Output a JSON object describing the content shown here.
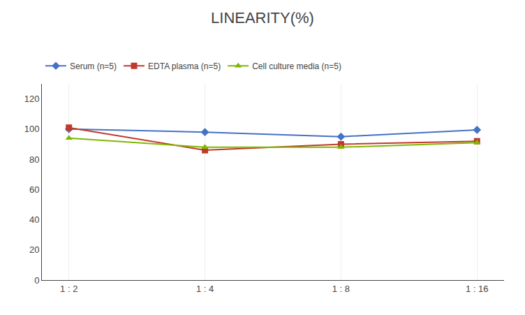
{
  "chart_data": {
    "type": "line",
    "title": "LINEARITY(%)",
    "categories": [
      "1 : 2",
      "1 : 4",
      "1 : 8",
      "1 : 16"
    ],
    "series": [
      {
        "name": "Serum (n=5)",
        "color": "#4472c4",
        "marker": "diamond",
        "values": [
          100,
          98,
          95,
          99.5
        ]
      },
      {
        "name": "EDTA plasma (n=5)",
        "color": "#c0392b",
        "marker": "square",
        "values": [
          101,
          86,
          90,
          92
        ]
      },
      {
        "name": "Cell culture media (n=5)",
        "color": "#7fb800",
        "marker": "triangle-up",
        "values": [
          94,
          88,
          88,
          91
        ]
      }
    ],
    "ylim": [
      0,
      130
    ],
    "yticks": [
      0,
      20,
      40,
      60,
      80,
      100,
      120
    ],
    "grid": true,
    "legend": "top"
  }
}
